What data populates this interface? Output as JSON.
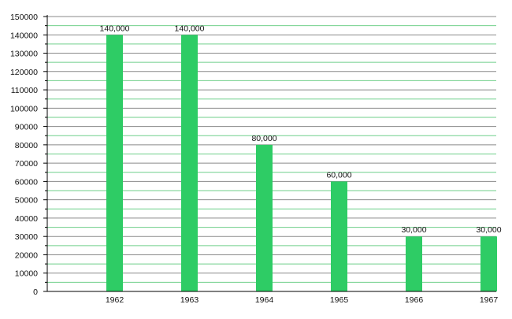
{
  "chart_data": {
    "type": "bar",
    "title": "",
    "xlabel": "",
    "ylabel": "",
    "categories": [
      "1962",
      "1963",
      "1964",
      "1965",
      "1966",
      "1967"
    ],
    "values": [
      140000,
      140000,
      80000,
      60000,
      30000,
      30000
    ],
    "value_labels": [
      "140,000",
      "140,000",
      "80,000",
      "60,000",
      "30,000",
      "30,000"
    ],
    "ylim": [
      0,
      150000
    ],
    "y_ticks": [
      0,
      10000,
      20000,
      30000,
      40000,
      50000,
      60000,
      70000,
      80000,
      90000,
      100000,
      110000,
      120000,
      130000,
      140000,
      150000
    ],
    "y_tick_labels": [
      "0",
      "10000",
      "20000",
      "30000",
      "40000",
      "50000",
      "60000",
      "70000",
      "80000",
      "90000",
      "100000",
      "110000",
      "120000",
      "130000",
      "140000",
      "150000"
    ],
    "grid": true,
    "legend": "none",
    "colors": {
      "bar": "#2ecc65",
      "grid_major": "#8a8a8a",
      "grid_minor": "#6fcf8a",
      "axis": "#000000"
    }
  }
}
